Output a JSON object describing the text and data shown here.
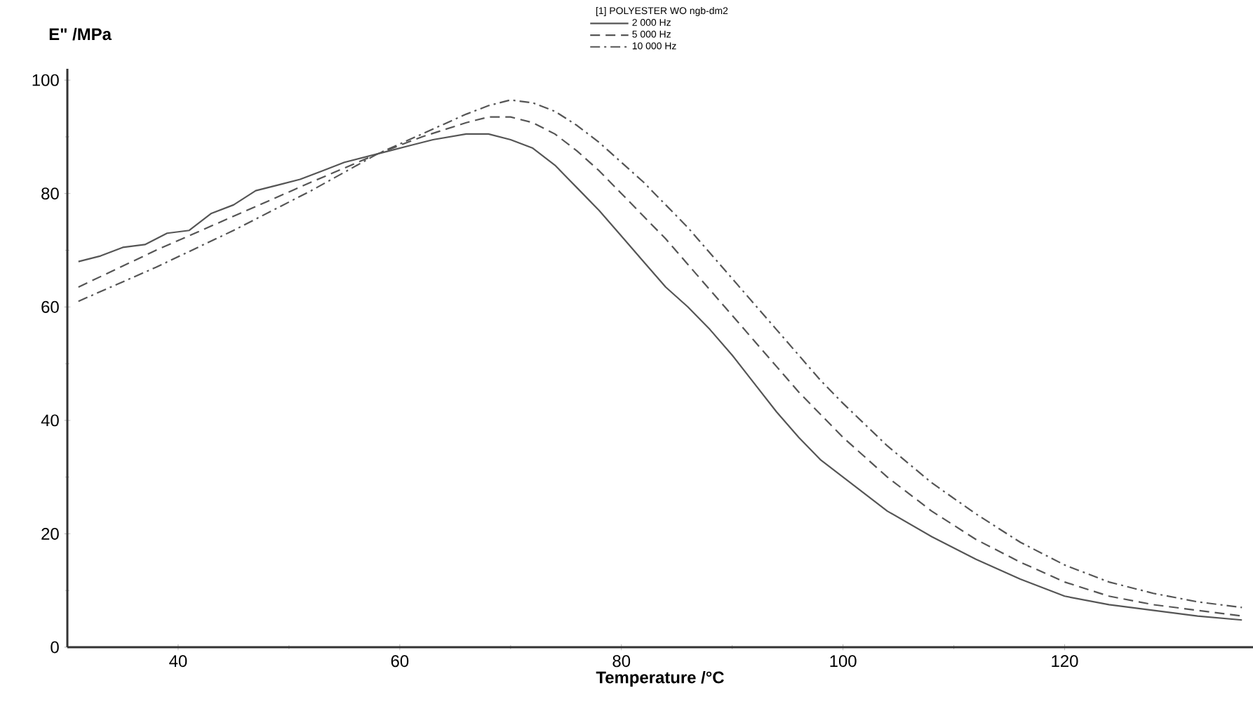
{
  "chart_data": {
    "type": "line",
    "xlabel": "Temperature /°C",
    "ylabel": "E\" /MPa",
    "legend_title": "[1] POLYESTER WO ngb-dm2",
    "xlim": [
      30,
      137
    ],
    "ylim": [
      0,
      102
    ],
    "xticks": [
      40,
      60,
      80,
      100,
      120
    ],
    "yticks": [
      0,
      20,
      40,
      60,
      80,
      100
    ],
    "grid": false,
    "legend": "top",
    "marker": "none",
    "series": [
      {
        "name": "2 000 Hz",
        "color": "#555555",
        "line_style": "solid",
        "x": [
          31,
          33,
          35,
          37,
          39,
          41,
          43,
          45,
          47,
          49,
          51,
          53,
          55,
          57,
          59,
          61,
          63,
          66,
          68,
          70,
          72,
          74,
          76,
          78,
          80,
          82,
          84,
          86,
          88,
          90,
          92,
          94,
          96,
          98,
          100,
          104,
          108,
          112,
          116,
          120,
          124,
          128,
          132,
          136
        ],
        "values": [
          68,
          69,
          70.5,
          71,
          73,
          73.5,
          76.5,
          78,
          80.5,
          81.5,
          82.5,
          84,
          85.5,
          86.5,
          87.5,
          88.5,
          89.5,
          90.5,
          90.5,
          89.5,
          88,
          85,
          81,
          77,
          72.5,
          68,
          63.5,
          60,
          56,
          51.5,
          46.5,
          41.5,
          37,
          33,
          30,
          24,
          19.5,
          15.5,
          12,
          9,
          7.5,
          6.5,
          5.5,
          4.8
        ]
      },
      {
        "name": "5 000 Hz",
        "color": "#555555",
        "line_style": "dashed",
        "x": [
          31,
          38,
          45,
          52,
          58,
          62,
          66,
          68,
          70,
          72,
          74,
          76,
          78,
          80,
          82,
          84,
          86,
          88,
          90,
          92,
          94,
          96,
          98,
          100,
          104,
          108,
          112,
          116,
          120,
          124,
          128,
          132,
          136
        ],
        "values": [
          63.5,
          70,
          76,
          82,
          87,
          90,
          92.5,
          93.5,
          93.5,
          92.5,
          90.5,
          87.5,
          84,
          80,
          76,
          72,
          67.5,
          63,
          58.5,
          54,
          49.5,
          45,
          41,
          37,
          30,
          24,
          19,
          15,
          11.5,
          9,
          7.5,
          6.5,
          5.5
        ]
      },
      {
        "name": "10 000 Hz",
        "color": "#555555",
        "line_style": "dashdot",
        "x": [
          31,
          38,
          45,
          52,
          58,
          62,
          66,
          68,
          70,
          72,
          74,
          76,
          78,
          80,
          82,
          84,
          86,
          88,
          90,
          92,
          94,
          96,
          98,
          100,
          104,
          108,
          112,
          116,
          120,
          124,
          128,
          132,
          136
        ],
        "values": [
          61,
          67,
          73.5,
          80.5,
          87,
          90.5,
          94,
          95.5,
          96.5,
          96,
          94.5,
          92,
          89,
          85.5,
          82,
          78,
          74,
          69.5,
          65,
          60.5,
          56,
          51.5,
          47,
          43,
          35.5,
          29,
          23.5,
          18.5,
          14.5,
          11.5,
          9.5,
          8,
          7
        ]
      }
    ]
  }
}
